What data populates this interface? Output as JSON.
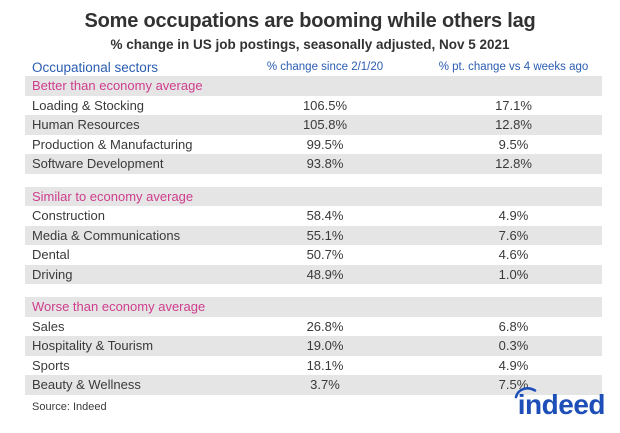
{
  "title": "Some occupations are booming while others lag",
  "subtitle": "% change in US job postings, seasonally adjusted, Nov 5 2021",
  "columns": [
    "Occupational sectors",
    "% change since 2/1/20",
    "% pt. change vs 4 weeks ago"
  ],
  "sections": [
    {
      "label": "Better than economy average",
      "rows": [
        {
          "sector": "Loading & Stocking",
          "change_since_feb2020": "106.5%",
          "pt_change_4wk": "17.1%"
        },
        {
          "sector": "Human Resources",
          "change_since_feb2020": "105.8%",
          "pt_change_4wk": "12.8%"
        },
        {
          "sector": "Production & Manufacturing",
          "change_since_feb2020": "99.5%",
          "pt_change_4wk": "9.5%"
        },
        {
          "sector": "Software Development",
          "change_since_feb2020": "93.8%",
          "pt_change_4wk": "12.8%"
        }
      ]
    },
    {
      "label": "Similar to economy average",
      "rows": [
        {
          "sector": "Construction",
          "change_since_feb2020": "58.4%",
          "pt_change_4wk": "4.9%"
        },
        {
          "sector": "Media & Communications",
          "change_since_feb2020": "55.1%",
          "pt_change_4wk": "7.6%"
        },
        {
          "sector": "Dental",
          "change_since_feb2020": "50.7%",
          "pt_change_4wk": "4.6%"
        },
        {
          "sector": "Driving",
          "change_since_feb2020": "48.9%",
          "pt_change_4wk": "1.0%"
        }
      ]
    },
    {
      "label": "Worse than economy average",
      "rows": [
        {
          "sector": "Sales",
          "change_since_feb2020": "26.8%",
          "pt_change_4wk": "6.8%"
        },
        {
          "sector": "Hospitality & Tourism",
          "change_since_feb2020": "19.0%",
          "pt_change_4wk": "0.3%"
        },
        {
          "sector": "Sports",
          "change_since_feb2020": "18.1%",
          "pt_change_4wk": "4.9%"
        },
        {
          "sector": "Beauty & Wellness",
          "change_since_feb2020": "3.7%",
          "pt_change_4wk": "7.5%"
        }
      ]
    }
  ],
  "source": "Source: Indeed",
  "logo": {
    "text": "indeed",
    "icon": "indeed-arc-icon"
  },
  "colors": {
    "header_blue": "#2b5db1",
    "section_pink": "#cf3d8d",
    "stripe_gray": "#e5e5e5",
    "text_dark": "#3a3a3a",
    "logo_blue": "#1e4fb9"
  },
  "chart_data": {
    "type": "table",
    "title": "Some occupations are booming while others lag",
    "subtitle": "% change in US job postings, seasonally adjusted, Nov 5 2021",
    "columns": [
      "Occupational sectors",
      "% change since 2/1/20",
      "% pt. change vs 4 weeks ago"
    ],
    "units": "percent",
    "groups": [
      {
        "group": "Better than economy average",
        "rows": [
          [
            "Loading & Stocking",
            106.5,
            17.1
          ],
          [
            "Human Resources",
            105.8,
            12.8
          ],
          [
            "Production & Manufacturing",
            99.5,
            9.5
          ],
          [
            "Software Development",
            93.8,
            12.8
          ]
        ]
      },
      {
        "group": "Similar to economy average",
        "rows": [
          [
            "Construction",
            58.4,
            4.9
          ],
          [
            "Media & Communications",
            55.1,
            7.6
          ],
          [
            "Dental",
            50.7,
            4.6
          ],
          [
            "Driving",
            48.9,
            1.0
          ]
        ]
      },
      {
        "group": "Worse than economy average",
        "rows": [
          [
            "Sales",
            26.8,
            6.8
          ],
          [
            "Hospitality & Tourism",
            19.0,
            0.3
          ],
          [
            "Sports",
            18.1,
            4.9
          ],
          [
            "Beauty & Wellness",
            3.7,
            7.5
          ]
        ]
      }
    ],
    "source": "Indeed"
  }
}
